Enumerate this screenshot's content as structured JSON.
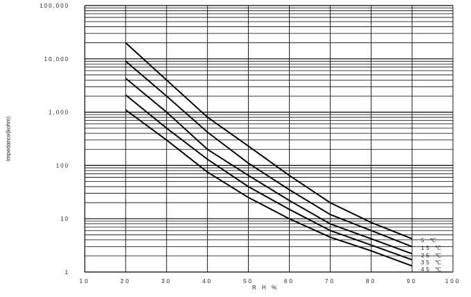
{
  "chart_data": {
    "type": "line",
    "title": "",
    "xlabel": "R H %",
    "ylabel": "Impedance(kohm)",
    "y_scale": "log",
    "xlim": [
      10,
      100
    ],
    "ylim": [
      1,
      100000
    ],
    "x_ticks": [
      "10",
      "20",
      "30",
      "40",
      "50",
      "60",
      "70",
      "80",
      "90",
      "100"
    ],
    "y_ticks": [
      "100,000",
      "10,000",
      "1,000",
      "100",
      "10",
      "1"
    ],
    "grid": true,
    "series": [
      {
        "name": "5 ℃",
        "x": [
          20,
          30,
          40,
          50,
          60,
          70,
          80,
          90
        ],
        "y": [
          20000,
          4000,
          800,
          230,
          65,
          20,
          8.5,
          4.2
        ]
      },
      {
        "name": "15 ℃",
        "x": [
          20,
          30,
          40,
          50,
          60,
          70,
          80,
          90
        ],
        "y": [
          9000,
          2000,
          420,
          110,
          35,
          12,
          6.0,
          3.0
        ]
      },
      {
        "name": "25 ℃",
        "x": [
          20,
          30,
          40,
          50,
          60,
          70,
          80,
          90
        ],
        "y": [
          4300,
          1000,
          200,
          65,
          22,
          8.0,
          4.2,
          2.2
        ]
      },
      {
        "name": "35 ℃",
        "x": [
          20,
          30,
          40,
          50,
          60,
          70,
          80,
          90
        ],
        "y": [
          2100,
          500,
          130,
          40,
          15,
          6.0,
          3.2,
          1.7
        ]
      },
      {
        "name": "45 ℃",
        "x": [
          20,
          30,
          40,
          50,
          60,
          70,
          80,
          90
        ],
        "y": [
          1100,
          300,
          75,
          25,
          10,
          4.5,
          2.5,
          1.3
        ]
      }
    ]
  }
}
